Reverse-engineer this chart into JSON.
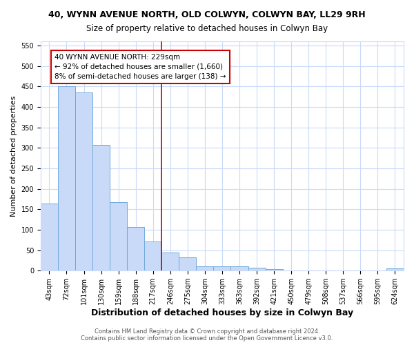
{
  "title": "40, WYNN AVENUE NORTH, OLD COLWYN, COLWYN BAY, LL29 9RH",
  "subtitle": "Size of property relative to detached houses in Colwyn Bay",
  "xlabel": "Distribution of detached houses by size in Colwyn Bay",
  "ylabel": "Number of detached properties",
  "categories": [
    "43sqm",
    "72sqm",
    "101sqm",
    "130sqm",
    "159sqm",
    "188sqm",
    "217sqm",
    "246sqm",
    "275sqm",
    "304sqm",
    "333sqm",
    "363sqm",
    "392sqm",
    "421sqm",
    "450sqm",
    "479sqm",
    "508sqm",
    "537sqm",
    "566sqm",
    "595sqm",
    "624sqm"
  ],
  "values": [
    164,
    450,
    435,
    307,
    167,
    107,
    72,
    45,
    33,
    11,
    10,
    10,
    7,
    3,
    1,
    1,
    1,
    0,
    0,
    0,
    5
  ],
  "bar_color": "#c9daf8",
  "bar_edge_color": "#6fa8dc",
  "vline_color": "#cc0000",
  "vline_x": 6.5,
  "annotation_line1": "40 WYNN AVENUE NORTH: 229sqm",
  "annotation_line2": "← 92% of detached houses are smaller (1,660)",
  "annotation_line3": "8% of semi-detached houses are larger (138) →",
  "annotation_box_color": "#ffffff",
  "annotation_box_edge_color": "#cc0000",
  "ylim": [
    0,
    560
  ],
  "yticks": [
    0,
    50,
    100,
    150,
    200,
    250,
    300,
    350,
    400,
    450,
    500,
    550
  ],
  "footer": "Contains HM Land Registry data © Crown copyright and database right 2024.\nContains public sector information licensed under the Open Government Licence v3.0.",
  "bg_color": "#ffffff",
  "grid_color": "#c9daf8",
  "title_fontsize": 9,
  "subtitle_fontsize": 8.5,
  "xlabel_fontsize": 9,
  "ylabel_fontsize": 8,
  "tick_fontsize": 7,
  "annotation_fontsize": 7.5,
  "footer_fontsize": 6
}
